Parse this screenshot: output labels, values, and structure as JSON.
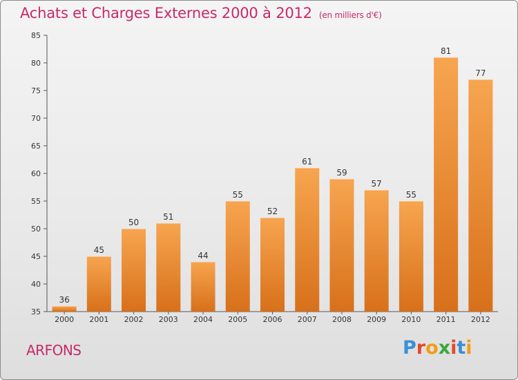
{
  "header": {
    "title": "Achats et Charges Externes 2000 à 2012",
    "unit": "(en milliers d'€)"
  },
  "footer": {
    "town": "ARFONS",
    "brand_letters": [
      "P",
      "r",
      "o",
      "x",
      "i",
      "t",
      "i"
    ],
    "brand_colors": [
      "#3a8fd8",
      "#e8472a",
      "#f39c1a",
      "#3aa83a",
      "#e8472a",
      "#3a8fd8",
      "#f39c1a"
    ]
  },
  "chart_data": {
    "type": "bar",
    "title": "Achats et Charges Externes 2000 à 2012",
    "subtitle": "(en milliers d'€)",
    "categories": [
      "2000",
      "2001",
      "2002",
      "2003",
      "2004",
      "2005",
      "2006",
      "2007",
      "2008",
      "2009",
      "2010",
      "2011",
      "2012"
    ],
    "values": [
      36,
      45,
      50,
      51,
      44,
      55,
      52,
      61,
      59,
      57,
      55,
      81,
      77
    ],
    "ylim": [
      35,
      85
    ],
    "yticks": [
      35,
      40,
      45,
      50,
      55,
      60,
      65,
      70,
      75,
      80,
      85
    ],
    "grid": false,
    "bar_color": "#f08a2a",
    "bar_color_light": "#f6a85a",
    "bar_color_dark": "#d8701a",
    "axis_color": "#555555"
  }
}
